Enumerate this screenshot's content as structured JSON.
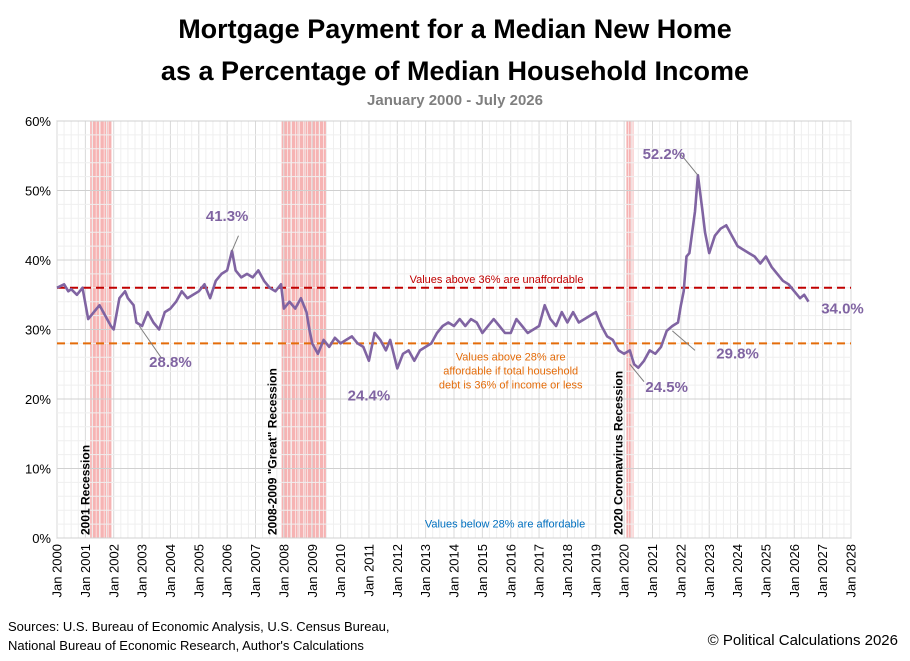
{
  "title_line1": "Mortgage Payment for a Median New Home",
  "title_line2": "as a Percentage of Median Household Income",
  "subtitle": "January  2000 - July 2026",
  "sources_line1": "Sources: U.S. Bureau of Economic Analysis, U.S. Census Bureau,",
  "sources_line2": "National Bureau of Economic Research, Author's Calculations",
  "copyright": "© Political Calculations 2026",
  "colors": {
    "series": "#8064a2",
    "unaffordable_line": "#c00000",
    "affordable_line": "#e46c0a",
    "recession": "#f4a6a6",
    "affordable_note": "#0070c0"
  },
  "chart_data": {
    "type": "line",
    "ylim": [
      0,
      60
    ],
    "yticks": [
      "0%",
      "10%",
      "20%",
      "30%",
      "40%",
      "50%",
      "60%"
    ],
    "ytick_values": [
      0,
      10,
      20,
      30,
      40,
      50,
      60
    ],
    "xlim": [
      2000,
      2028
    ],
    "xticks": [
      "Jan 2000",
      "Jan 2001",
      "Jan 2002",
      "Jan 2003",
      "Jan 2004",
      "Jan 2005",
      "Jan 2006",
      "Jan 2007",
      "Jan 2008",
      "Jan 2009",
      "Jan 2010",
      "Jan 2011",
      "Jan 2012",
      "Jan 2013",
      "Jan 2014",
      "Jan 2015",
      "Jan 2016",
      "Jan 2017",
      "Jan 2018",
      "Jan 2019",
      "Jan 2020",
      "Jan 2021",
      "Jan 2022",
      "Jan 2023",
      "Jan 2024",
      "Jan 2025",
      "Jan 2026",
      "Jan 2027",
      "Jan 2028"
    ],
    "xtick_values": [
      2000,
      2001,
      2002,
      2003,
      2004,
      2005,
      2006,
      2007,
      2008,
      2009,
      2010,
      2011,
      2012,
      2013,
      2014,
      2015,
      2016,
      2017,
      2018,
      2019,
      2020,
      2021,
      2022,
      2023,
      2024,
      2025,
      2026,
      2027,
      2028
    ],
    "grid": true,
    "series": [
      {
        "x": [
          2000.0,
          2000.25,
          2000.4,
          2000.5,
          2000.7,
          2000.9,
          2001.1,
          2001.3,
          2001.5,
          2001.7,
          2001.9,
          2002.0,
          2002.2,
          2002.4,
          2002.5,
          2002.7,
          2002.8,
          2003.0,
          2003.2,
          2003.4,
          2003.5,
          2003.6,
          2003.8,
          2004.0,
          2004.2,
          2004.4,
          2004.6,
          2004.8,
          2005.0,
          2005.2,
          2005.4,
          2005.6,
          2005.8,
          2006.0,
          2006.17,
          2006.3,
          2006.5,
          2006.7,
          2006.9,
          2007.1,
          2007.3,
          2007.5,
          2007.7,
          2007.9,
          2008.0,
          2008.2,
          2008.4,
          2008.6,
          2008.8,
          2008.9,
          2009.0,
          2009.2,
          2009.4,
          2009.6,
          2009.8,
          2010.0,
          2010.2,
          2010.4,
          2010.6,
          2010.8,
          2011.0,
          2011.2,
          2011.4,
          2011.6,
          2011.75,
          2012.0,
          2012.2,
          2012.4,
          2012.6,
          2012.8,
          2013.0,
          2013.2,
          2013.4,
          2013.6,
          2013.8,
          2014.0,
          2014.2,
          2014.4,
          2014.6,
          2014.8,
          2015.0,
          2015.2,
          2015.4,
          2015.6,
          2015.8,
          2016.0,
          2016.2,
          2016.4,
          2016.6,
          2016.8,
          2017.0,
          2017.2,
          2017.4,
          2017.6,
          2017.8,
          2018.0,
          2018.2,
          2018.4,
          2018.6,
          2018.8,
          2019.0,
          2019.2,
          2019.4,
          2019.6,
          2019.8,
          2020.0,
          2020.2,
          2020.35,
          2020.5,
          2020.7,
          2020.9,
          2021.1,
          2021.3,
          2021.5,
          2021.7,
          2021.9,
          2022.0,
          2022.1,
          2022.2,
          2022.3,
          2022.4,
          2022.5,
          2022.6,
          2022.75,
          2022.85,
          2023.0,
          2023.2,
          2023.4,
          2023.6,
          2023.8,
          2024.0,
          2024.2,
          2024.4,
          2024.6,
          2024.8,
          2025.0,
          2025.2,
          2025.4,
          2025.6,
          2025.8,
          2026.0,
          2026.2,
          2026.35,
          2026.5
        ],
        "values": [
          36.0,
          36.5,
          35.5,
          35.8,
          35.0,
          36.0,
          31.5,
          32.5,
          33.5,
          32.0,
          30.5,
          30.0,
          34.5,
          35.5,
          34.5,
          33.5,
          31.0,
          30.5,
          32.5,
          31.0,
          30.5,
          30.0,
          32.5,
          33.0,
          34.0,
          35.5,
          34.5,
          35.0,
          35.5,
          36.5,
          34.5,
          37.0,
          38.0,
          38.5,
          41.3,
          38.5,
          37.5,
          38.0,
          37.5,
          38.5,
          37.0,
          36.0,
          35.5,
          36.5,
          33.0,
          34.0,
          33.0,
          34.5,
          32.5,
          30.0,
          28.0,
          26.5,
          28.5,
          27.5,
          28.8,
          28.0,
          28.5,
          29.0,
          28.0,
          27.5,
          25.5,
          29.5,
          28.5,
          27.0,
          28.5,
          24.4,
          26.5,
          27.0,
          25.5,
          27.0,
          27.5,
          28.0,
          29.5,
          30.5,
          31.0,
          30.5,
          31.5,
          30.5,
          31.5,
          31.0,
          29.5,
          30.5,
          31.5,
          30.5,
          29.5,
          29.5,
          31.5,
          30.5,
          29.5,
          30.0,
          30.5,
          33.5,
          31.5,
          30.5,
          32.5,
          31.0,
          32.5,
          31.0,
          31.5,
          32.0,
          32.5,
          30.5,
          29.0,
          28.5,
          27.0,
          26.5,
          27.0,
          25.0,
          24.5,
          25.5,
          27.0,
          26.5,
          27.5,
          29.8,
          30.5,
          31.0,
          33.5,
          35.5,
          40.5,
          41.0,
          44.0,
          47.0,
          52.2,
          47.5,
          44.0,
          41.0,
          43.5,
          44.5,
          45.0,
          43.5,
          42.0,
          41.5,
          41.0,
          40.5,
          39.5,
          40.5,
          39.0,
          38.0,
          37.0,
          36.5,
          35.5,
          34.5,
          35.0,
          34.0
        ]
      }
    ],
    "data_labels": [
      "41.3%",
      "28.8%",
      "24.4%",
      "24.5%",
      "29.8%",
      "52.2%",
      "34.0%"
    ],
    "reference_lines": [
      {
        "value": 36,
        "label": "Values above 36% are unaffordable"
      },
      {
        "value": 28,
        "label_line1": "Values above 28% are",
        "label_line2": "affordable  if total household",
        "label_line3": "debt is 36% of income or less"
      }
    ],
    "affordable_note": "Values below 28% are affordable",
    "recessions": [
      {
        "start": 2001.17,
        "end": 2001.92,
        "label": "2001  Recession"
      },
      {
        "start": 2007.92,
        "end": 2009.5,
        "label": "2008-2009  \"Great\" Recession"
      },
      {
        "start": 2020.08,
        "end": 2020.33,
        "label": "2020  Coronavirus Recession"
      }
    ]
  }
}
